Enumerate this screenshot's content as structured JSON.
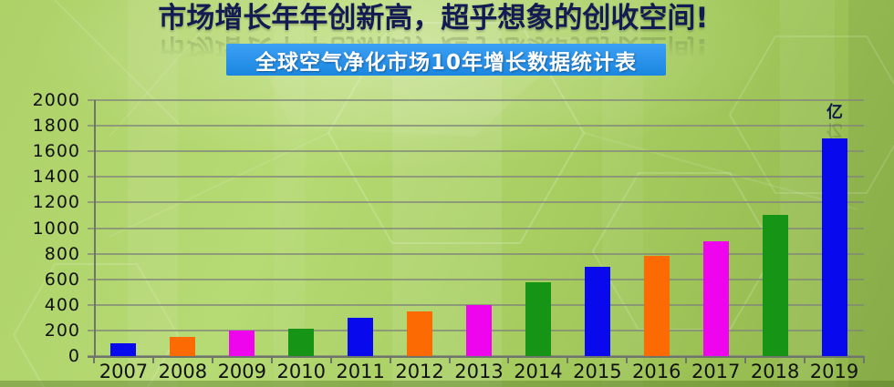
{
  "page": {
    "title": "市场增长年年创新高，超乎想象的创收空间!",
    "title_color": "#131c52",
    "banner_label": "全球空气净化市场10年增长数据统计表",
    "banner_color": "#2190ee"
  },
  "chart_data": {
    "type": "bar",
    "title": "全球空气净化市场10年增长数据统计表",
    "unit_label": "亿",
    "categories": [
      "2007",
      "2008",
      "2009",
      "2010",
      "2011",
      "2012",
      "2013",
      "2014",
      "2015",
      "2016",
      "2017",
      "2018",
      "2019"
    ],
    "values": [
      100,
      150,
      200,
      210,
      300,
      350,
      400,
      580,
      700,
      780,
      900,
      1100,
      1700
    ],
    "colors": [
      "#0909ee",
      "#fc6a03",
      "#ee05ee",
      "#159415",
      "#0909ee",
      "#fc6a03",
      "#ee05ee",
      "#159415",
      "#0909ee",
      "#fc6a03",
      "#ee05ee",
      "#159415",
      "#0909ee"
    ],
    "xlabel": "",
    "ylabel": "",
    "ylim": [
      0,
      2000
    ],
    "ytick_step": 200,
    "grid": true,
    "legend": "none",
    "axis_color": "#70756a"
  }
}
